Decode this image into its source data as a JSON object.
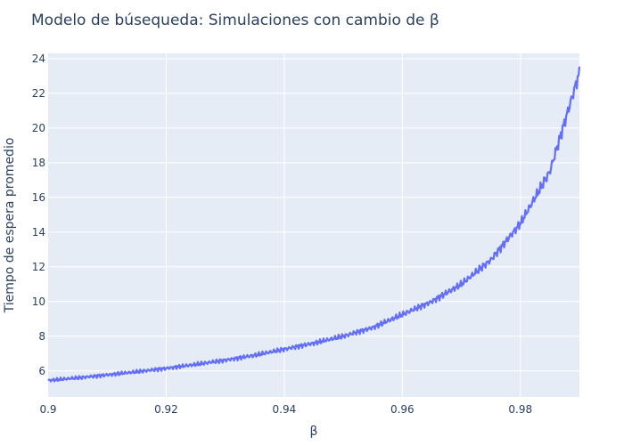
{
  "chart_data": {
    "type": "line",
    "title": "Modelo de búsequeda: Simulaciones con cambio de β",
    "xlabel": "β",
    "ylabel": "Tiempo de espera promedio",
    "xlim": [
      0.9,
      0.99
    ],
    "ylim": [
      4.5,
      24.3
    ],
    "x_ticks": [
      0.9,
      0.92,
      0.94,
      0.96,
      0.98
    ],
    "x_tick_labels": [
      "0.9",
      "0.92",
      "0.94",
      "0.96",
      "0.98"
    ],
    "y_ticks": [
      6,
      8,
      10,
      12,
      14,
      16,
      18,
      20,
      22,
      24
    ],
    "y_tick_labels": [
      "6",
      "8",
      "10",
      "12",
      "14",
      "16",
      "18",
      "20",
      "22",
      "24"
    ],
    "grid": true,
    "legend": "none",
    "series": [
      {
        "x": [
          0.9,
          0.905,
          0.91,
          0.915,
          0.92,
          0.925,
          0.93,
          0.935,
          0.94,
          0.945,
          0.95,
          0.955,
          0.96,
          0.965,
          0.97,
          0.975,
          0.98,
          0.985,
          0.99
        ],
        "values": [
          5.45,
          5.6,
          5.77,
          5.95,
          6.15,
          6.37,
          6.62,
          6.9,
          7.25,
          7.6,
          8.0,
          8.5,
          9.25,
          10.0,
          11.0,
          12.4,
          14.5,
          17.5,
          23.2
        ],
        "color": "#636efa"
      }
    ],
    "colors": {
      "plot_background": "#e5ecf6",
      "grid": "#ffffff",
      "text": "#2a3f5f"
    }
  }
}
